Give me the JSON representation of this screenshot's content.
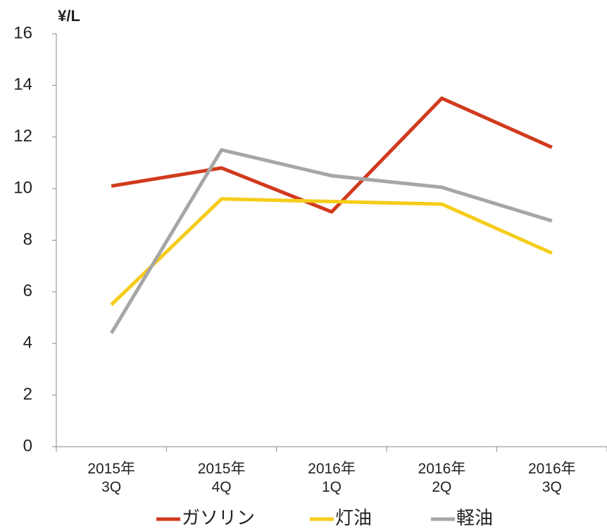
{
  "chart_data": {
    "type": "line",
    "ylabel": "¥/L",
    "categories": [
      "2015年\n3Q",
      "2015年\n4Q",
      "2016年\n1Q",
      "2016年\n2Q",
      "2016年\n3Q"
    ],
    "series": [
      {
        "name": "ガソリン",
        "color": "#d13a1e",
        "values": [
          10.1,
          10.8,
          9.1,
          13.5,
          11.6
        ]
      },
      {
        "name": "灯油",
        "color": "#f5cc1a",
        "values": [
          5.5,
          9.6,
          9.5,
          9.4,
          7.5
        ]
      },
      {
        "name": "軽油",
        "color": "#a6a6a6",
        "values": [
          4.4,
          11.5,
          10.5,
          10.05,
          8.75
        ]
      }
    ],
    "ylim": [
      0,
      16
    ],
    "yticks": [
      0,
      2,
      4,
      6,
      8,
      10,
      12,
      14,
      16
    ],
    "grid": false,
    "legend": "bottom"
  }
}
